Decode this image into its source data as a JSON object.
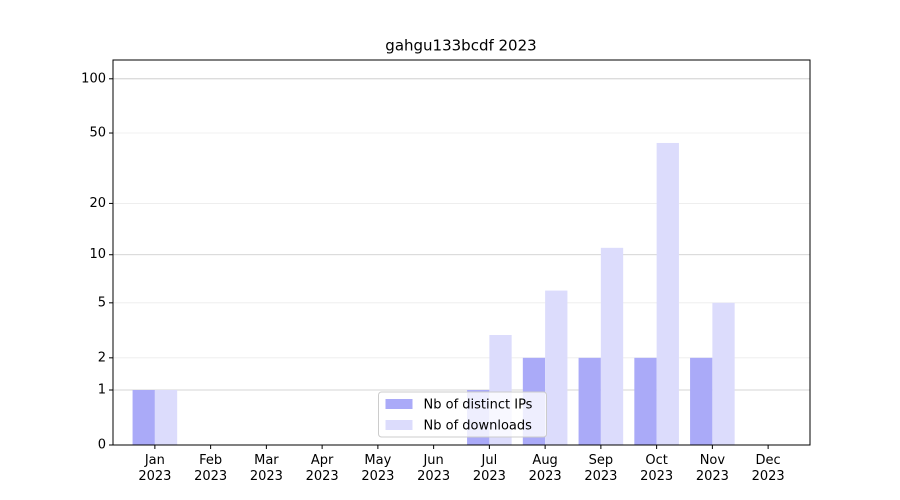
{
  "chart_data": {
    "type": "bar",
    "title": "gahgu133bcdf 2023",
    "categories": [
      "Jan\n2023",
      "Feb\n2023",
      "Mar\n2023",
      "Apr\n2023",
      "May\n2023",
      "Jun\n2023",
      "Jul\n2023",
      "Aug\n2023",
      "Sep\n2023",
      "Oct\n2023",
      "Nov\n2023",
      "Dec\n2023"
    ],
    "series": [
      {
        "name": "Nb of distinct IPs",
        "color": "#aaaaf8",
        "values": [
          1,
          0,
          0,
          0,
          0,
          0,
          1,
          2,
          2,
          2,
          2,
          0
        ]
      },
      {
        "name": "Nb of downloads",
        "color": "#dcdcfc",
        "values": [
          1,
          0,
          0,
          0,
          0,
          0,
          3,
          6,
          11,
          44,
          5,
          0
        ]
      }
    ],
    "y_scale": "log1p",
    "ylim": [
      0,
      127
    ],
    "yticks": [
      0,
      1,
      2,
      5,
      10,
      20,
      50,
      100
    ],
    "grid": true,
    "legend_loc": "lower center"
  }
}
